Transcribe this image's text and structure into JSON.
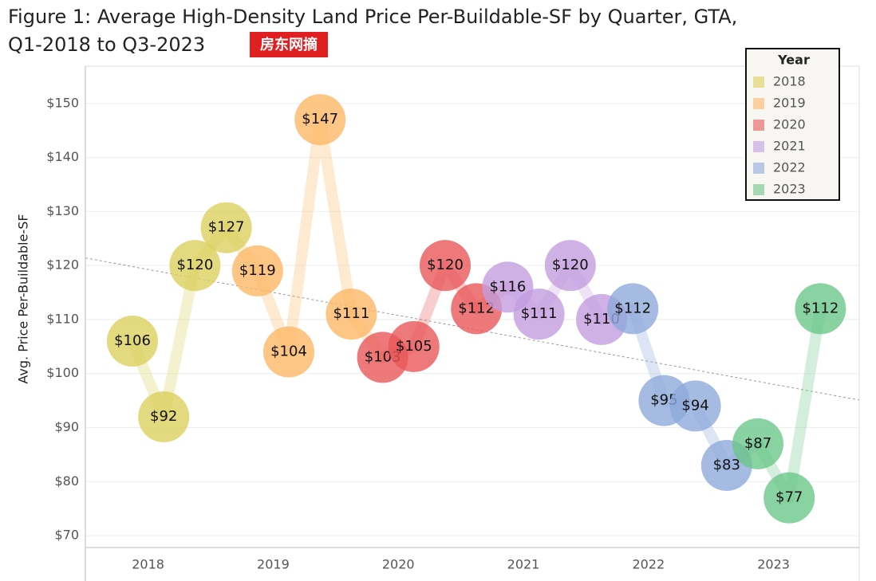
{
  "chart_data": {
    "type": "bubble-line",
    "title": "Figure 1: Average High-Density Land Price Per-Buildable-SF by Quarter, GTA,",
    "title_line2": "Q1-2018 to Q3-2023",
    "watermark": "房东网摘",
    "y_label": "Avg. Price Per-Buildable-SF",
    "legend_title": "Year",
    "legend": "top-right",
    "grid": true,
    "categories": [
      "2018",
      "2019",
      "2020",
      "2021",
      "2022",
      "2023"
    ],
    "series": [
      {
        "name": "2018",
        "color": "#dccf5e",
        "values": [
          106,
          92,
          120,
          127
        ],
        "value_labels": [
          "$106",
          "$92",
          "$120",
          "$127"
        ]
      },
      {
        "name": "2019",
        "color": "#fdb866",
        "values": [
          119,
          104,
          147,
          111
        ],
        "value_labels": [
          "$119",
          "$104",
          "$147",
          "$111"
        ]
      },
      {
        "name": "2020",
        "color": "#e8585a",
        "values": [
          103,
          105,
          120,
          112
        ],
        "value_labels": [
          "$103",
          "$105",
          "$120",
          "$112"
        ]
      },
      {
        "name": "2021",
        "color": "#c39ee0",
        "values": [
          116,
          111,
          120,
          110
        ],
        "value_labels": [
          "$116",
          "$111",
          "$120",
          "$110"
        ]
      },
      {
        "name": "2022",
        "color": "#8eaadb",
        "values": [
          112,
          95,
          94,
          83
        ],
        "value_labels": [
          "$112",
          "$95",
          "$94",
          "$83"
        ]
      },
      {
        "name": "2023",
        "color": "#6cc78a",
        "values": [
          87,
          77,
          112
        ],
        "value_labels": [
          "$87",
          "$77",
          "$112"
        ]
      }
    ],
    "trend_line": [
      121.4,
      95.1
    ],
    "ylim": [
      67.8,
      156.9
    ],
    "yticks": [
      {
        "value": 70,
        "label": "$70"
      },
      {
        "value": 80,
        "label": "$80"
      },
      {
        "value": 90,
        "label": "$90"
      },
      {
        "value": 100,
        "label": "$100"
      },
      {
        "value": 110,
        "label": "$110"
      },
      {
        "value": 120,
        "label": "$120"
      },
      {
        "value": 130,
        "label": "$130"
      },
      {
        "value": 140,
        "label": "$140"
      },
      {
        "value": 150,
        "label": "$150"
      }
    ]
  }
}
